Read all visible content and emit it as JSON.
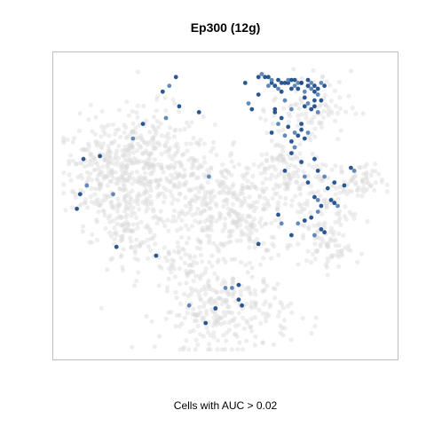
{
  "chart_data": {
    "type": "scatter",
    "title": "Ep300 (12g)",
    "xlabel": "",
    "ylabel": "",
    "caption": "Cells with AUC > 0.02",
    "axes_visible": false,
    "grid": false,
    "legend": "none",
    "xlim": [
      0,
      100
    ],
    "ylim": [
      0,
      100
    ],
    "colors": {
      "background_cells": "#d9d9d9",
      "highlight_cells": "#1f4e89",
      "highlight_cells_light": "#5b83b7",
      "frame": "#bdbdbd"
    },
    "series": [
      {
        "group": "background",
        "clusters": [
          {
            "cx": 13,
            "cy": 62,
            "sx": 6,
            "sy": 9,
            "n": 210
          },
          {
            "cx": 27,
            "cy": 63,
            "sx": 8,
            "sy": 10,
            "n": 330
          },
          {
            "cx": 20,
            "cy": 40,
            "sx": 5,
            "sy": 7,
            "n": 90
          },
          {
            "cx": 43,
            "cy": 52,
            "sx": 6,
            "sy": 11,
            "n": 200
          },
          {
            "cx": 56,
            "cy": 46,
            "sx": 6,
            "sy": 10,
            "n": 170
          },
          {
            "cx": 50,
            "cy": 14,
            "sx": 10,
            "sy": 7,
            "n": 260
          },
          {
            "cx": 68,
            "cy": 60,
            "sx": 5,
            "sy": 8,
            "n": 120
          },
          {
            "cx": 80,
            "cy": 50,
            "sx": 6,
            "sy": 9,
            "n": 120
          },
          {
            "cx": 90,
            "cy": 58,
            "sx": 4,
            "sy": 3,
            "n": 45
          },
          {
            "cx": 76,
            "cy": 84,
            "sx": 6,
            "sy": 6,
            "n": 90
          },
          {
            "cx": 82,
            "cy": 36,
            "sx": 3,
            "sy": 4,
            "n": 40
          },
          {
            "cx": 37,
            "cy": 30,
            "sx": 4,
            "sy": 4,
            "n": 40
          }
        ]
      },
      {
        "group": "cells_above_threshold",
        "x": [
          63,
          64,
          65,
          66,
          67,
          68,
          68,
          69,
          70,
          71,
          72,
          73,
          74,
          74,
          75,
          76,
          77,
          77,
          78,
          79,
          60,
          61,
          62,
          63,
          64,
          66,
          67,
          69,
          70,
          71,
          72,
          73,
          75,
          76,
          77,
          78,
          79,
          80,
          74,
          75,
          76,
          77,
          78,
          73,
          72,
          71,
          70,
          69,
          68,
          56,
          60,
          57,
          58,
          65,
          66,
          64,
          70,
          71,
          68,
          73,
          74,
          75,
          31,
          32,
          35,
          25,
          22,
          12,
          7,
          8,
          6,
          5,
          33,
          36,
          42,
          45,
          65,
          67,
          70,
          73,
          74,
          75,
          77,
          78,
          80,
          82,
          83,
          84,
          86,
          88,
          89,
          81,
          83,
          78,
          79,
          76,
          77,
          79,
          80,
          78,
          77,
          70,
          72,
          74,
          66,
          67,
          60,
          54,
          52,
          54,
          55,
          50,
          47,
          44,
          39,
          29,
          17,
          16
        ],
        "y": [
          91,
          92,
          91,
          90,
          89,
          92,
          86,
          92,
          90,
          91,
          90,
          92,
          89,
          87,
          91,
          90,
          89,
          86,
          88,
          86,
          94,
          95,
          94,
          94,
          93,
          93,
          92,
          93,
          93,
          93,
          92,
          92,
          93,
          92,
          91,
          90,
          92,
          91,
          84,
          85,
          83,
          84,
          82,
          76,
          74,
          75,
          72,
          77,
          74,
          92,
          88,
          85,
          83,
          83,
          78,
          75,
          68,
          70,
          62,
          65,
          60,
          58,
          89,
          80,
          94,
          78,
          73,
          67,
          66,
          57,
          54,
          49,
          91,
          84,
          82,
          60,
          82,
          80,
          83,
          78,
          73,
          75,
          66,
          62,
          60,
          52,
          51,
          50,
          57,
          63,
          62,
          56,
          58,
          48,
          50,
          46,
          40,
          42,
          41,
          52,
          53,
          40,
          44,
          45,
          47,
          44,
          37,
          23,
          22,
          18,
          16,
          22,
          15,
          10,
          16,
          33,
          36,
          54
        ]
      }
    ]
  }
}
